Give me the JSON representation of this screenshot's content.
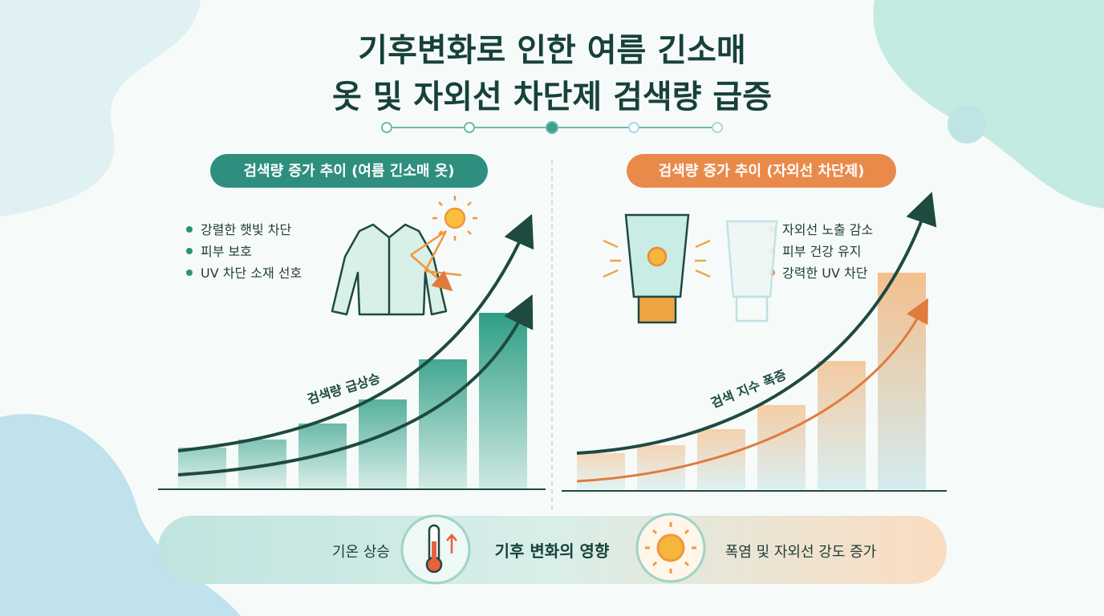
{
  "header": {
    "title_line1": "기후변화로 인한 여름 긴소매",
    "title_line2": "옷 및 자외선 차단제  검색량 급증"
  },
  "left_panel": {
    "badge": "검색량 증가 추이 (여름 긴소매 옷)",
    "bullets": [
      "강렬한 햇빛 차단",
      "피부 보호",
      "UV 차단 소재 선호"
    ],
    "curve_label": "검색량 급상승"
  },
  "right_panel": {
    "badge": "검색량 증가 추이 (자외선 차단제)",
    "bullets": [
      "자외선 노출 감소",
      "피부 건강 유지",
      "강력한 UV 차단"
    ],
    "curve_label": "검색 지수 폭증"
  },
  "footer": {
    "left": "기온 상승",
    "center": "기후 변화의 영향",
    "right": "폭염 및 자외선 강도 증가"
  }
}
